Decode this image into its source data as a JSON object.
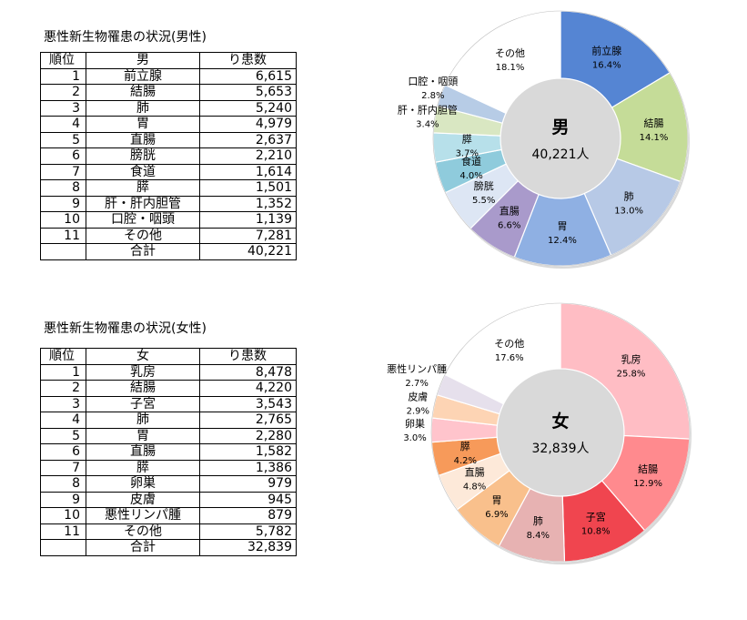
{
  "male": {
    "title": "悪性新生物罹患の状況(男性)",
    "headers": {
      "rank": "順位",
      "name": "男",
      "count": "り患数"
    },
    "rows": [
      {
        "rank": "1",
        "name": "前立腺",
        "count": "6,615"
      },
      {
        "rank": "2",
        "name": "結腸",
        "count": "5,653"
      },
      {
        "rank": "3",
        "name": "肺",
        "count": "5,240"
      },
      {
        "rank": "4",
        "name": "胃",
        "count": "4,979"
      },
      {
        "rank": "5",
        "name": "直腸",
        "count": "2,637"
      },
      {
        "rank": "6",
        "name": "膀胱",
        "count": "2,210"
      },
      {
        "rank": "7",
        "name": "食道",
        "count": "1,614"
      },
      {
        "rank": "8",
        "name": "膵",
        "count": "1,501"
      },
      {
        "rank": "9",
        "name": "肝・肝内胆管",
        "count": "1,352"
      },
      {
        "rank": "10",
        "name": "口腔・咽頭",
        "count": "1,139"
      },
      {
        "rank": "11",
        "name": "その他",
        "count": "7,281"
      }
    ],
    "total_label": "合計",
    "total_value": "40,221"
  },
  "female": {
    "title": "悪性新生物罹患の状況(女性)",
    "headers": {
      "rank": "順位",
      "name": "女",
      "count": "り患数"
    },
    "rows": [
      {
        "rank": "1",
        "name": "乳房",
        "count": "8,478"
      },
      {
        "rank": "2",
        "name": "結腸",
        "count": "4,220"
      },
      {
        "rank": "3",
        "name": "子宮",
        "count": "3,543"
      },
      {
        "rank": "4",
        "name": "肺",
        "count": "2,765"
      },
      {
        "rank": "5",
        "name": "胃",
        "count": "2,280"
      },
      {
        "rank": "6",
        "name": "直腸",
        "count": "1,582"
      },
      {
        "rank": "7",
        "name": "膵",
        "count": "1,386"
      },
      {
        "rank": "8",
        "name": "卵巣",
        "count": "979"
      },
      {
        "rank": "9",
        "name": "皮膚",
        "count": "945"
      },
      {
        "rank": "10",
        "name": "悪性リンパ腫",
        "count": "879"
      },
      {
        "rank": "11",
        "name": "その他",
        "count": "5,782"
      }
    ],
    "total_label": "合計",
    "total_value": "32,839"
  },
  "chart_data": [
    {
      "type": "pie",
      "variant": "donut",
      "center_label": "男",
      "center_value": "40,221人",
      "categories": [
        "前立腺",
        "結腸",
        "肺",
        "胃",
        "直腸",
        "膀胱",
        "食道",
        "膵",
        "肝・肝内胆管",
        "口腔・咽頭",
        "その他"
      ],
      "values": [
        16.4,
        14.1,
        13.0,
        12.4,
        6.6,
        5.5,
        4.0,
        3.7,
        3.4,
        2.8,
        18.1
      ],
      "value_labels": [
        "16.4%",
        "14.1%",
        "13.0%",
        "12.4%",
        "6.6%",
        "5.5%",
        "4.0%",
        "3.7%",
        "3.4%",
        "2.8%",
        "18.1%"
      ],
      "colors": [
        "#5585d3",
        "#c5dc98",
        "#b7c9e6",
        "#8fb0e3",
        "#a99acb",
        "#dde6f4",
        "#8fcbdc",
        "#b7e0ea",
        "#d9e7c2",
        "#b7cce6",
        "#ffffff"
      ]
    },
    {
      "type": "pie",
      "variant": "donut",
      "center_label": "女",
      "center_value": "32,839人",
      "categories": [
        "乳房",
        "結腸",
        "子宮",
        "肺",
        "胃",
        "直腸",
        "膵",
        "卵巣",
        "皮膚",
        "悪性リンパ腫",
        "その他"
      ],
      "values": [
        25.8,
        12.9,
        10.8,
        8.4,
        6.9,
        4.8,
        4.2,
        3.0,
        2.9,
        2.7,
        17.6
      ],
      "value_labels": [
        "25.8%",
        "12.9%",
        "10.8%",
        "8.4%",
        "6.9%",
        "4.8%",
        "4.2%",
        "3.0%",
        "2.9%",
        "2.7%",
        "17.6%"
      ],
      "colors": [
        "#ffbdc4",
        "#ff8a8e",
        "#f0454f",
        "#e7b2b2",
        "#f9c08c",
        "#fde9d9",
        "#f79a5a",
        "#ffc4cc",
        "#fdd4b4",
        "#e6e0ec",
        "#ffffff"
      ]
    }
  ]
}
